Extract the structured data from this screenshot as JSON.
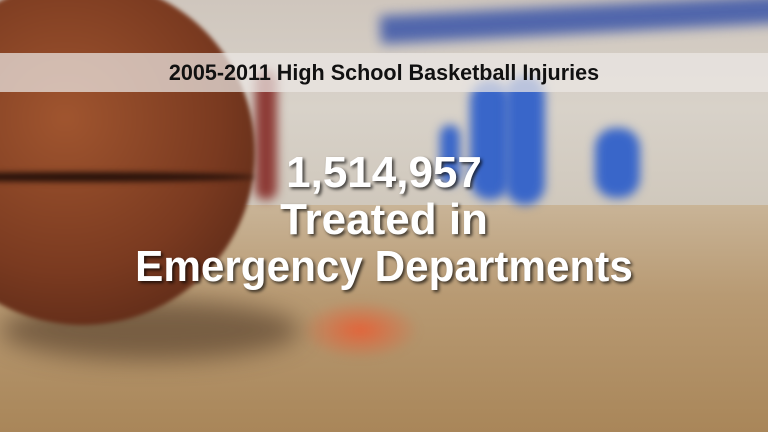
{
  "title": "2005-2011 High School Basketball Injuries",
  "stat": {
    "number": "1,514,957",
    "line2": "Treated in",
    "line3": "Emergency Departments"
  }
}
